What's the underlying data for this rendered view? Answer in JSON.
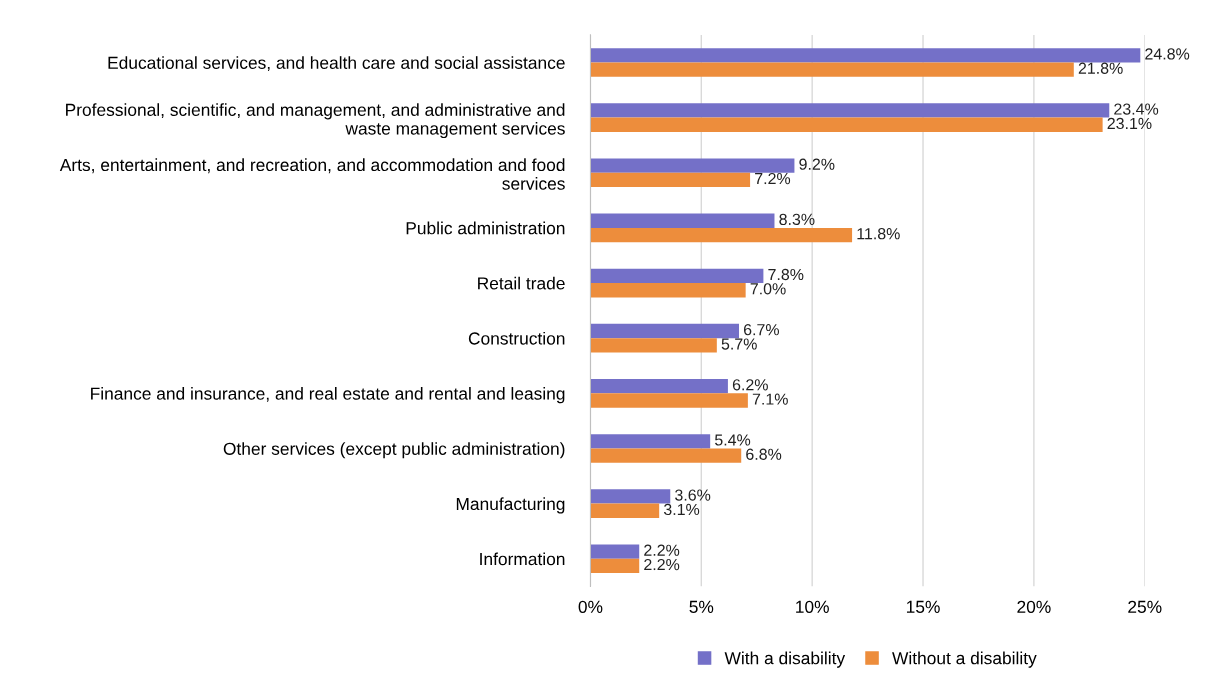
{
  "chart_data": {
    "type": "bar",
    "orientation": "horizontal",
    "categories": [
      "Educational services, and health care and social assistance",
      "Professional, scientific, and management, and administrative and\nwaste management services",
      "Arts, entertainment, and recreation, and accommodation and food\nservices",
      "Public administration",
      "Retail trade",
      "Construction",
      "Finance and insurance, and real estate and rental and leasing",
      "Other services (except public administration)",
      "Manufacturing",
      "Information"
    ],
    "series": [
      {
        "name": "With a disability",
        "color": "#7470c8",
        "values": [
          24.8,
          23.4,
          9.2,
          8.3,
          7.8,
          6.7,
          6.2,
          5.4,
          3.6,
          2.2
        ],
        "value_labels": [
          "24.8%",
          "23.4%",
          "9.2%",
          "8.3%",
          "7.8%",
          "6.7%",
          "6.2%",
          "5.4%",
          "3.6%",
          "2.2%"
        ]
      },
      {
        "name": "Without a disability",
        "color": "#ed8d3c",
        "values": [
          21.8,
          23.1,
          7.2,
          11.8,
          7.0,
          5.7,
          7.1,
          6.8,
          3.1,
          2.2
        ],
        "value_labels": [
          "21.8%",
          "23.1%",
          "7.2%",
          "11.8%",
          "7.0%",
          "5.7%",
          "7.1%",
          "6.8%",
          "3.1%",
          "2.2%"
        ]
      }
    ],
    "xlim": [
      0,
      25
    ],
    "xticks": [
      {
        "value": 0,
        "label": "0%"
      },
      {
        "value": 5,
        "label": "5%"
      },
      {
        "value": 10,
        "label": "10%"
      },
      {
        "value": 15,
        "label": "15%"
      },
      {
        "value": 20,
        "label": "20%"
      },
      {
        "value": 25,
        "label": "25%"
      }
    ],
    "grid": "x",
    "legend": "bottom"
  }
}
